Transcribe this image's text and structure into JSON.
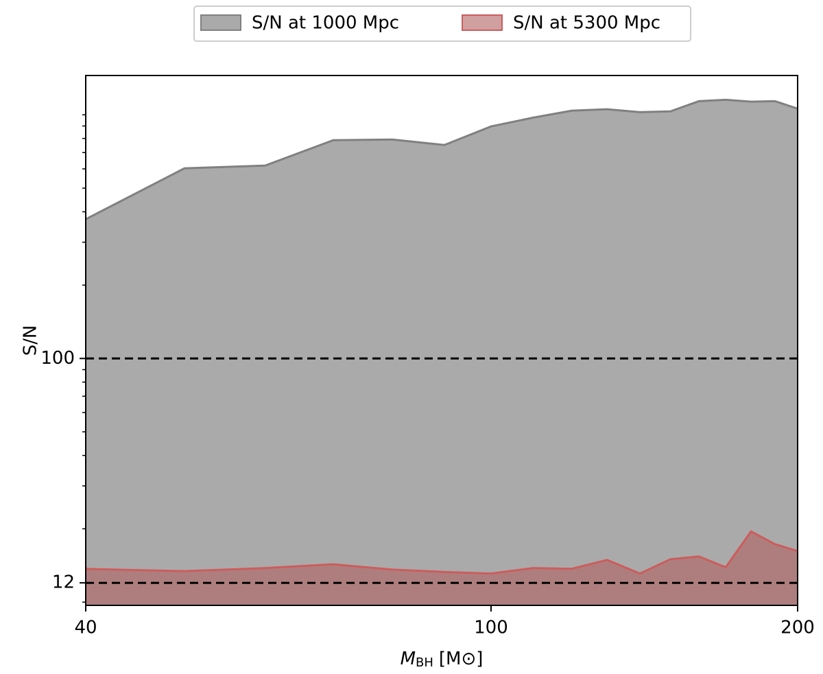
{
  "chart_data": {
    "type": "area",
    "xlabel": {
      "symbol": "M",
      "subscript": "BH",
      "unit": "[M⊙]"
    },
    "ylabel": "S/N",
    "x": [
      40,
      50,
      60,
      70,
      80,
      90,
      100,
      110,
      120,
      130,
      140,
      150,
      160,
      170,
      180,
      190,
      200
    ],
    "series": [
      {
        "name": "S/N at 1000 Mpc",
        "color": "#808080",
        "fill": "#aaaaaa",
        "values": [
          373,
          603,
          619,
          787,
          792,
          752,
          896,
          974,
          1040,
          1054,
          1026,
          1033,
          1138,
          1153,
          1132,
          1138,
          1060
        ]
      },
      {
        "name": "S/N at 5300 Mpc",
        "color": "#cd5c5c",
        "fill": "#b06060",
        "values": [
          13.7,
          13.4,
          13.8,
          14.3,
          13.6,
          13.3,
          13.1,
          13.8,
          13.7,
          14.9,
          13.1,
          15.0,
          15.4,
          13.9,
          19.5,
          17.3,
          16.2
        ]
      }
    ],
    "xscale": "log",
    "yscale": "log",
    "xlim": [
      40,
      200
    ],
    "xticks": [
      40,
      100,
      200
    ],
    "ylim": [
      9.7,
      1450
    ],
    "yticks": [
      12,
      100
    ],
    "yminorticks": [
      10,
      20,
      30,
      40,
      50,
      60,
      70,
      80,
      90,
      200,
      300,
      400,
      500,
      600,
      700,
      800,
      900,
      1000
    ],
    "reference_lines": [
      100,
      12
    ],
    "legend": "top-center-outside"
  }
}
